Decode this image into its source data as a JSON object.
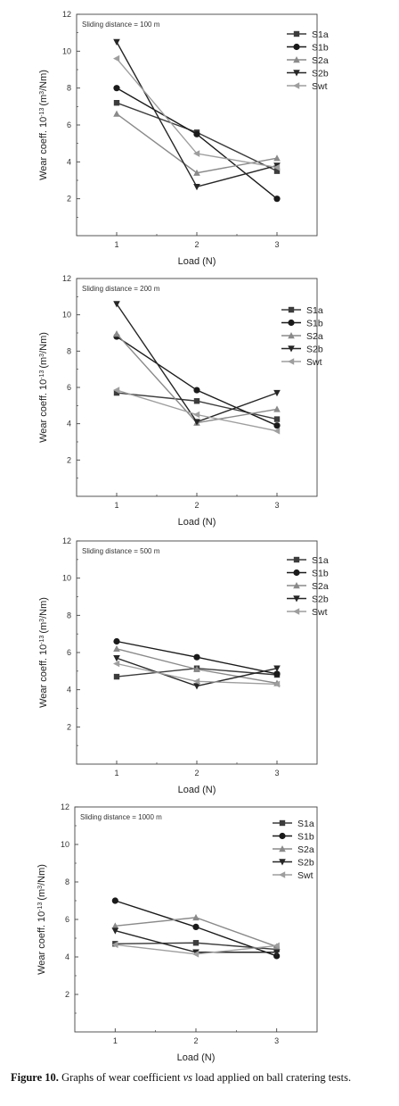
{
  "figure": {
    "caption_label": "Figure 10.",
    "caption_pre": " Graphs of wear coefficient ",
    "caption_vs": "vs",
    "caption_post": " load applied on ball cratering tests."
  },
  "series_styles": [
    {
      "name": "S1a",
      "color": "#3c3c3c",
      "marker": "square"
    },
    {
      "name": "S1b",
      "color": "#1a1a1a",
      "marker": "circle"
    },
    {
      "name": "S2a",
      "color": "#8a8a8a",
      "marker": "triangle-up"
    },
    {
      "name": "S2b",
      "color": "#262626",
      "marker": "triangle-down"
    },
    {
      "name": "Swt",
      "color": "#9e9e9e",
      "marker": "triangle-left"
    }
  ],
  "chart_data": [
    {
      "type": "line",
      "annotation": "Sliding distance = 100 m",
      "xlabel": "Load (N)",
      "ylabel": "Wear coeff. 10",
      "ylabel_sup": "-13",
      "ylabel_unit": "(m",
      "ylabel_sup2": "3",
      "ylabel_end": "/Nm)",
      "x": [
        1,
        2,
        3
      ],
      "xlim": [
        0.5,
        3.5
      ],
      "ylim": [
        0,
        12
      ],
      "yticks": [
        2,
        4,
        6,
        8,
        10,
        12
      ],
      "legend_position": "top-right",
      "series": [
        {
          "name": "S1a",
          "values": [
            7.2,
            5.6,
            3.5
          ]
        },
        {
          "name": "S1b",
          "values": [
            8.0,
            5.5,
            2.0
          ]
        },
        {
          "name": "S2a",
          "values": [
            6.6,
            3.4,
            4.2
          ]
        },
        {
          "name": "S2b",
          "values": [
            10.5,
            2.65,
            3.8
          ]
        },
        {
          "name": "Swt",
          "values": [
            9.6,
            4.45,
            3.7
          ]
        }
      ]
    },
    {
      "type": "line",
      "annotation": "Sliding distance = 200 m",
      "xlabel": "Load (N)",
      "ylabel": "Wear coeff. 10",
      "ylabel_sup": "-13",
      "ylabel_unit": "(m",
      "ylabel_sup2": "3",
      "ylabel_end": "/Nm)",
      "x": [
        1,
        2,
        3
      ],
      "xlim": [
        0.5,
        3.5
      ],
      "ylim": [
        0,
        12
      ],
      "yticks": [
        2,
        4,
        6,
        8,
        10,
        12
      ],
      "legend_position": "top-right",
      "series": [
        {
          "name": "S1a",
          "values": [
            5.7,
            5.25,
            4.25
          ]
        },
        {
          "name": "S1b",
          "values": [
            8.8,
            5.85,
            3.9
          ]
        },
        {
          "name": "S2a",
          "values": [
            8.95,
            4.05,
            4.8
          ]
        },
        {
          "name": "S2b",
          "values": [
            10.6,
            4.1,
            5.7
          ]
        },
        {
          "name": "Swt",
          "values": [
            5.85,
            4.5,
            3.6
          ]
        }
      ]
    },
    {
      "type": "line",
      "annotation": "Sliding distance = 500 m",
      "xlabel": "Load (N)",
      "ylabel": "Wear coeff. 10",
      "ylabel_sup": "-13",
      "ylabel_unit": "(m",
      "ylabel_sup2": "3",
      "ylabel_end": "/Nm)",
      "x": [
        1,
        2,
        3
      ],
      "xlim": [
        0.5,
        3.5
      ],
      "ylim": [
        0,
        12
      ],
      "yticks": [
        2,
        4,
        6,
        8,
        10,
        12
      ],
      "legend_position": "top-right",
      "series": [
        {
          "name": "S1a",
          "values": [
            4.7,
            5.15,
            4.8
          ]
        },
        {
          "name": "S1b",
          "values": [
            6.6,
            5.75,
            4.85
          ]
        },
        {
          "name": "S2a",
          "values": [
            6.2,
            5.1,
            4.35
          ]
        },
        {
          "name": "S2b",
          "values": [
            5.7,
            4.2,
            5.15
          ]
        },
        {
          "name": "Swt",
          "values": [
            5.4,
            4.45,
            4.3
          ]
        }
      ]
    },
    {
      "type": "line",
      "annotation": "Sliding distance = 1000 m",
      "xlabel": "Load (N)",
      "ylabel": "Wear coeff. 10",
      "ylabel_sup": "-13",
      "ylabel_unit": "(m",
      "ylabel_sup2": "3",
      "ylabel_end": "/Nm)",
      "x": [
        1,
        2,
        3
      ],
      "xlim": [
        0.5,
        3.5
      ],
      "ylim": [
        0,
        12
      ],
      "yticks": [
        2,
        4,
        6,
        8,
        10,
        12
      ],
      "legend_position": "top-right",
      "series": [
        {
          "name": "S1a",
          "values": [
            4.7,
            4.75,
            4.4
          ]
        },
        {
          "name": "S1b",
          "values": [
            7.0,
            5.6,
            4.05
          ]
        },
        {
          "name": "S2a",
          "values": [
            5.65,
            6.1,
            4.55
          ]
        },
        {
          "name": "S2b",
          "values": [
            5.4,
            4.25,
            4.25
          ]
        },
        {
          "name": "Swt",
          "values": [
            4.65,
            4.15,
            4.6
          ]
        }
      ]
    }
  ]
}
